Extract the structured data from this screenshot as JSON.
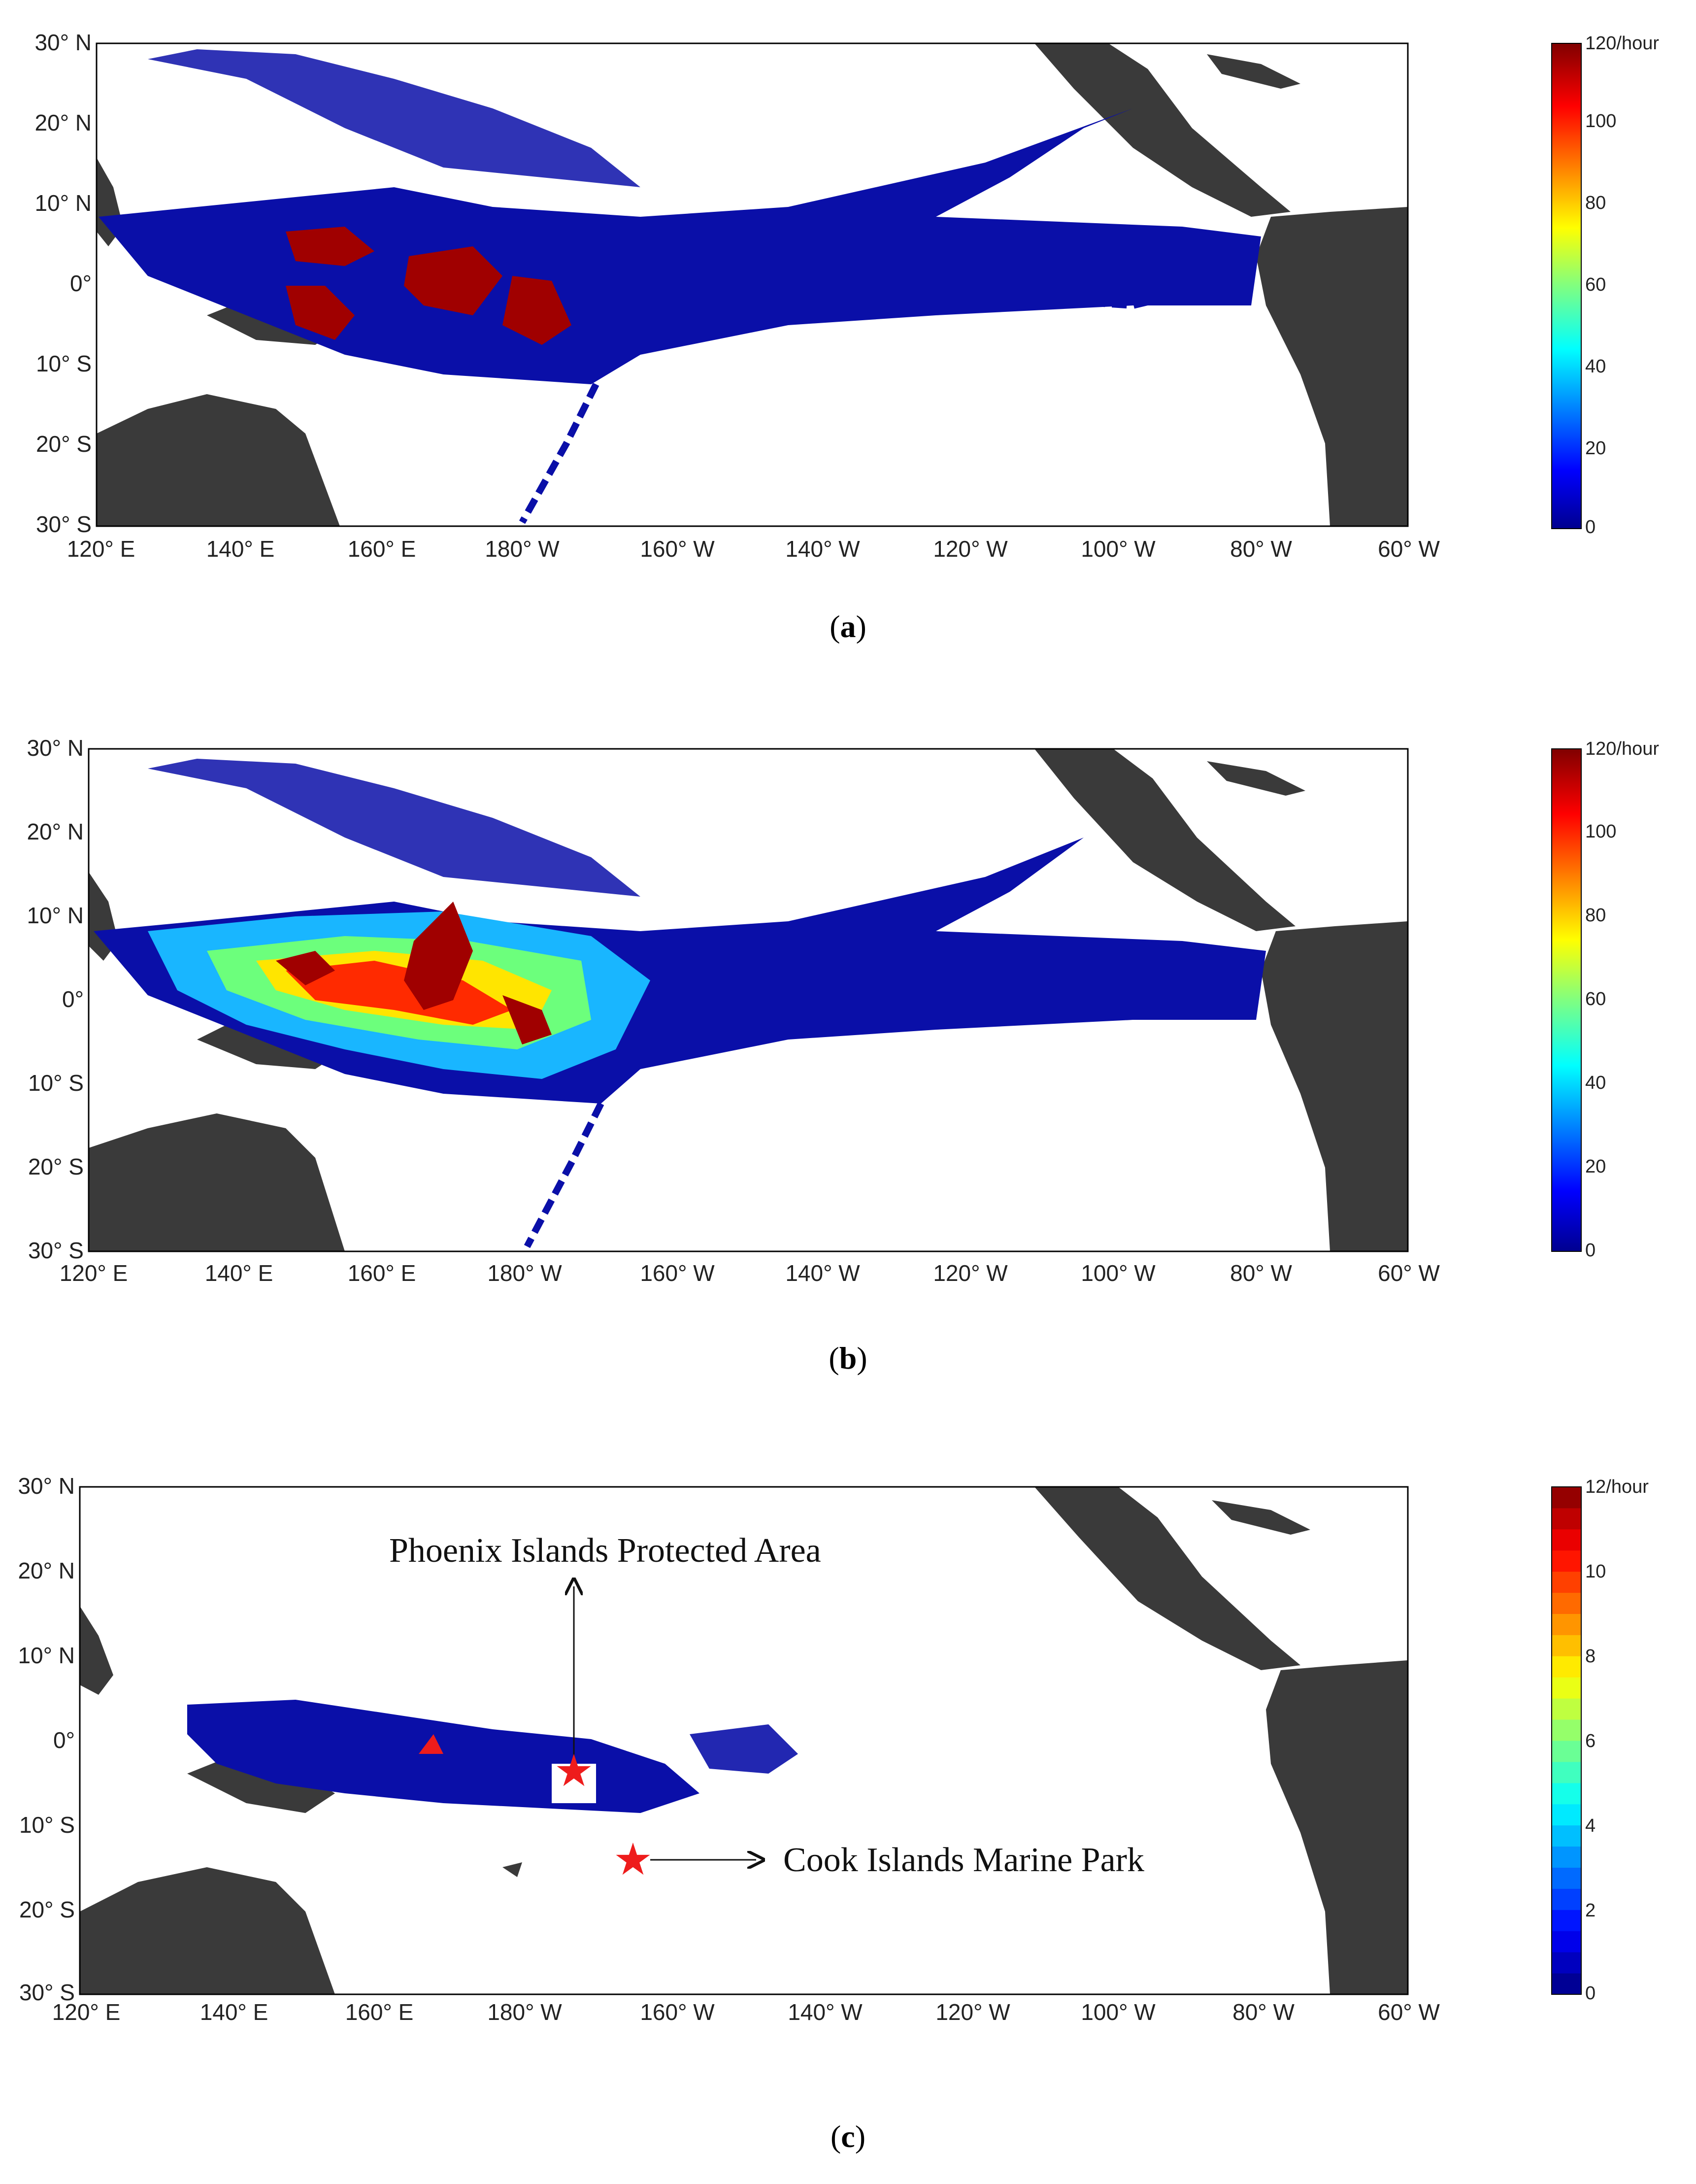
{
  "panels": [
    {
      "id": "a",
      "caption": "a",
      "colorbar": {
        "labels": [
          "120/hour",
          "100",
          "80",
          "60",
          "40",
          "20",
          "0"
        ],
        "style": "continuous"
      },
      "x_ticks": [
        "120° E",
        "140° E",
        "160° E",
        "180° W",
        "160° W",
        "140° W",
        "120° W",
        "100° W",
        "80° W",
        "60° W"
      ],
      "y_ticks": [
        "30° N",
        "20° N",
        "10° N",
        "0°",
        "10° S",
        "20° S",
        "30° S"
      ]
    },
    {
      "id": "b",
      "caption": "b",
      "colorbar": {
        "labels": [
          "120/hour",
          "100",
          "80",
          "60",
          "40",
          "20",
          "0"
        ],
        "style": "continuous"
      },
      "x_ticks": [
        "120° E",
        "140° E",
        "160° E",
        "180° W",
        "160° W",
        "140° W",
        "120° W",
        "100° W",
        "80° W",
        "60° W"
      ],
      "y_ticks": [
        "30° N",
        "20° N",
        "10° N",
        "0°",
        "10° S",
        "20° S",
        "30° S"
      ]
    },
    {
      "id": "c",
      "caption": "c",
      "colorbar": {
        "labels": [
          "12/hour",
          "10",
          "8",
          "6",
          "4",
          "2",
          "0"
        ],
        "style": "stepped"
      },
      "x_ticks": [
        "120° E",
        "140° E",
        "160° E",
        "180° W",
        "160° W",
        "140° W",
        "120° W",
        "100° W",
        "80° W",
        "60° W"
      ],
      "y_ticks": [
        "30° N",
        "20° N",
        "10° N",
        "0°",
        "10° S",
        "20° S",
        "30° S"
      ],
      "annotations": {
        "phoenix": "Phoenix Islands Protected Area",
        "cook": "Cook Islands Marine Park"
      },
      "markers": [
        {
          "name": "Phoenix Islands Protected Area",
          "symbol": "red-star"
        },
        {
          "name": "Cook Islands Marine Park",
          "symbol": "red-star"
        }
      ]
    }
  ],
  "colors": {
    "land": "#3a3a3a",
    "low_density": "#0a0fa8",
    "high_density": "#a00000",
    "marker": "#ee1c1c"
  }
}
